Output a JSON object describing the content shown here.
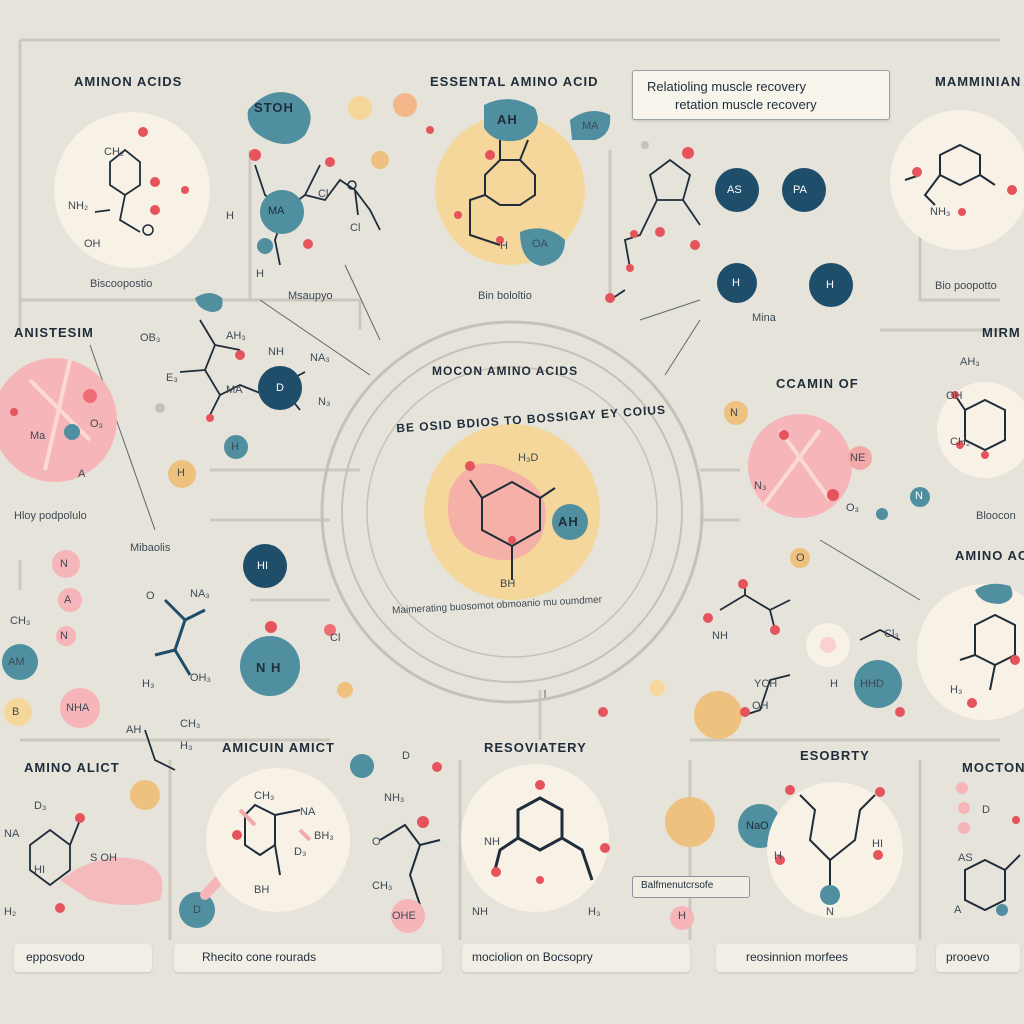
{
  "callout": {
    "line1": "Relatioling muscle recovery",
    "line2": "retation muscle recovery"
  },
  "headings": {
    "top_left": "AMINON ACIDS",
    "top_center": "ESSENTAL AMINO ACID",
    "top_right": "MAMMINIAN",
    "mid_left": "ANISTESIM",
    "mid_right": "MIRM",
    "center_ring": "MOCON AMINO ACIDS",
    "center_arc": "BE OSID BDIOS TO BOSSIGAY EY COIUS",
    "right_mid": "CCAMIN OF",
    "right_lower": "AMINO ACI",
    "bottom_left": "AMINO ALICT",
    "bottom_center_left": "AMICUIN AMICT",
    "bottom_center": "RESOVIATERY",
    "bottom_right": "ESOBRTY",
    "bottom_far_right": "MOCTONT"
  },
  "captions": {
    "c1": "Biscoopostio",
    "c2": "Msaupyo",
    "c3": "Bin bololtio",
    "c4": "Mina",
    "c5": "Bio poopotto",
    "c6": "Hloy podpolulo",
    "c7": "Mibaolis",
    "c8": "Bloocon",
    "arc_caption": "Maimerating buosomot obmoanio mu oumdmer"
  },
  "bottom_labels": {
    "b1": "epposvodo",
    "b2": "Rhecito cone rourads",
    "b3": "mociolion on Bocsopry",
    "b4": "reosinnion morfees",
    "b5": "prooevo",
    "box": "Balfmenutcrsofe"
  },
  "atom_labels": {
    "top_left_ring": [
      "CH₂",
      "O",
      "NH₂",
      "OH",
      "O"
    ],
    "bubble_stoh": "STOH",
    "chain_top": [
      "H",
      "MA",
      "Cl",
      "Cl",
      "H"
    ],
    "big_ah": "AH",
    "ring_top_center": [
      "O",
      "OH",
      "H",
      "OA"
    ],
    "ma_tag": "MA",
    "dark_nodes_top": [
      "AS",
      "PA",
      "H",
      "H"
    ],
    "right_top_ring": [
      "O",
      "NH₃"
    ],
    "mid_left_chain": [
      "OB₃",
      "AH₃",
      "NH",
      "NA₃",
      "E₃",
      "MA",
      "D",
      "N₃",
      "H"
    ],
    "left_pink": [
      "O₃",
      "Ma",
      "O₃",
      "A"
    ],
    "orange_h": "H",
    "center_ring": [
      "H₃D",
      "AH",
      "BH"
    ],
    "right_mid_labels": [
      "N",
      "NE",
      "N₃",
      "O₃",
      "N",
      "O"
    ],
    "right_top_mid": [
      "AH₃",
      "OH",
      "CH₂"
    ],
    "dark_hi": "HI",
    "left_mid_nodes": [
      "N",
      "A",
      "N",
      "AM",
      "NHA",
      "B",
      "CH₃"
    ],
    "nh_chain": [
      "O",
      "NA₃",
      "H₃",
      "OH₃",
      "NH",
      "Cl"
    ],
    "dark_nh": "N H",
    "right_lower_mid": [
      "NH",
      "O",
      "YCH",
      "H",
      "HHD",
      "OH",
      "Cl₃",
      "CH",
      "HHD"
    ],
    "right_lower_ring": [
      "H₃",
      "O"
    ],
    "bottom_left": [
      "AH",
      "CH₃",
      "H₃",
      "D₃",
      "NA",
      "S OH",
      "HI",
      "H₂",
      "O"
    ],
    "bottom_center_left": [
      "CH₃",
      "NA",
      "BH₃",
      "D₃",
      "BH",
      "D"
    ],
    "bottom_middle": [
      "D",
      "NH₃",
      "O",
      "CH₃",
      "OHE",
      "H₃"
    ],
    "bottom_center": [
      "NH",
      "O",
      "H₃"
    ],
    "bottom_right_mid": [
      "NaO",
      "H",
      "HI",
      "N"
    ],
    "bottom_far_right": [
      "D",
      "AS",
      "A",
      "N"
    ],
    "orange_h_bottom": "H"
  },
  "colors": {
    "background": "#e6e3da",
    "navy": "#1f4e6b",
    "teal": "#4f8fa0",
    "pink": "#f6b5b8",
    "coral": "#ee6e74",
    "peach": "#f6d79b",
    "cream": "#f7f1e6",
    "orange": "#eec17f",
    "line": "#c9c5bc",
    "ink": "#1f2d3a"
  }
}
